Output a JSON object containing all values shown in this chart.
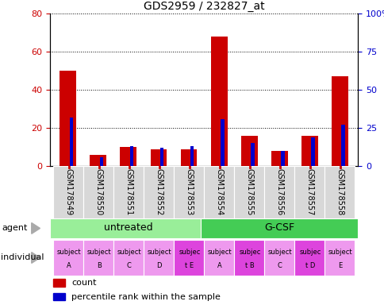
{
  "title": "GDS2959 / 232827_at",
  "samples": [
    "GSM178549",
    "GSM178550",
    "GSM178551",
    "GSM178552",
    "GSM178553",
    "GSM178554",
    "GSM178555",
    "GSM178556",
    "GSM178557",
    "GSM178558"
  ],
  "count_values": [
    50,
    6,
    10,
    9,
    9,
    68,
    16,
    8,
    16,
    47
  ],
  "percentile_values": [
    32,
    6,
    13,
    12,
    13,
    31,
    15,
    10,
    19,
    27
  ],
  "ylim_left": [
    0,
    80
  ],
  "ylim_right": [
    0,
    100
  ],
  "yticks_left": [
    0,
    20,
    40,
    60,
    80
  ],
  "yticks_right": [
    0,
    25,
    50,
    75,
    100
  ],
  "ytick_labels_right": [
    "0",
    "25",
    "50",
    "75",
    "100%"
  ],
  "agent_groups": [
    {
      "label": "untreated",
      "start": 0,
      "end": 5,
      "color": "#99ee99"
    },
    {
      "label": "G-CSF",
      "start": 5,
      "end": 10,
      "color": "#44cc55"
    }
  ],
  "individuals": [
    [
      "subject",
      "A"
    ],
    [
      "subject",
      "B"
    ],
    [
      "subject",
      "C"
    ],
    [
      "subject",
      "D"
    ],
    [
      "subjec",
      "t E"
    ],
    [
      "subject",
      "A"
    ],
    [
      "subjec",
      "t B"
    ],
    [
      "subject",
      "C"
    ],
    [
      "subjec",
      "t D"
    ],
    [
      "subject",
      "E"
    ]
  ],
  "individual_colors": [
    "#ee99ee",
    "#ee99ee",
    "#ee99ee",
    "#ee99ee",
    "#dd44dd",
    "#ee99ee",
    "#dd44dd",
    "#ee99ee",
    "#dd44dd",
    "#ee99ee"
  ],
  "bar_color": "#cc0000",
  "percentile_color": "#0000cc",
  "bar_width": 0.55,
  "pct_bar_width": 0.12,
  "tick_label_color_left": "#cc0000",
  "tick_label_color_right": "#0000cc",
  "sample_label_bg": "#d8d8d8",
  "agent_label_fontsize": 9,
  "ind_fontsize": 6,
  "sample_fontsize": 7
}
